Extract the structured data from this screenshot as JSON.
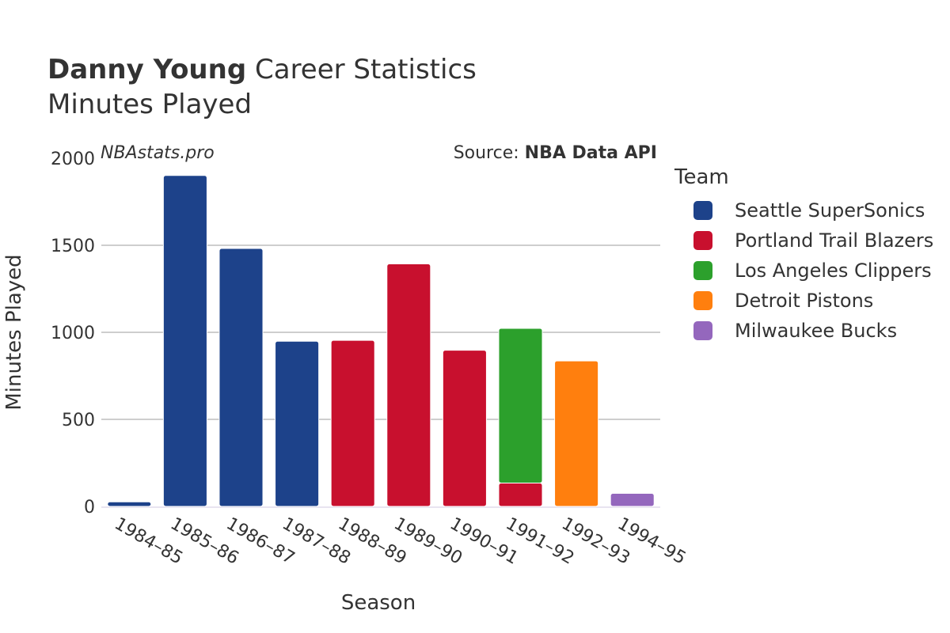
{
  "header": {
    "title_bold": "Danny Young",
    "title_rest": " Career Statistics",
    "subtitle": "Minutes Played"
  },
  "watermark": "NBAstats.pro",
  "source": {
    "label": "Source: ",
    "value": "NBA Data API"
  },
  "legend": {
    "title": "Team",
    "items": [
      {
        "label": "Seattle SuperSonics",
        "color": "#1d428a"
      },
      {
        "label": "Portland Trail Blazers",
        "color": "#c8102e"
      },
      {
        "label": "Los Angeles Clippers",
        "color": "#2ca02c"
      },
      {
        "label": "Detroit Pistons",
        "color": "#ff7f0e"
      },
      {
        "label": "Milwaukee Bucks",
        "color": "#9467bd"
      }
    ]
  },
  "chart_data": {
    "type": "bar",
    "stacked": true,
    "xlabel": "Season",
    "ylabel": "Minutes Played",
    "ylim": [
      0,
      2000
    ],
    "yticks": [
      0,
      500,
      1000,
      1500,
      2000
    ],
    "grid": true,
    "legend_position": "right",
    "categories": [
      "1984–85",
      "1985–86",
      "1986–87",
      "1987–88",
      "1988–89",
      "1989–90",
      "1990–91",
      "1991–92",
      "1992–93",
      "1994–95"
    ],
    "series": [
      {
        "name": "Seattle SuperSonics",
        "color": "#1d428a",
        "values": [
          26,
          1901,
          1482,
          949,
          0,
          0,
          0,
          0,
          0,
          0
        ]
      },
      {
        "name": "Portland Trail Blazers",
        "color": "#c8102e",
        "values": [
          0,
          0,
          0,
          0,
          954,
          1393,
          897,
          134,
          0,
          0
        ]
      },
      {
        "name": "Los Angeles Clippers",
        "color": "#2ca02c",
        "values": [
          0,
          0,
          0,
          0,
          0,
          0,
          0,
          889,
          0,
          0
        ]
      },
      {
        "name": "Detroit Pistons",
        "color": "#ff7f0e",
        "values": [
          0,
          0,
          0,
          0,
          0,
          0,
          0,
          0,
          836,
          0
        ]
      },
      {
        "name": "Milwaukee Bucks",
        "color": "#9467bd",
        "values": [
          0,
          0,
          0,
          0,
          0,
          0,
          0,
          0,
          0,
          75
        ]
      }
    ]
  }
}
